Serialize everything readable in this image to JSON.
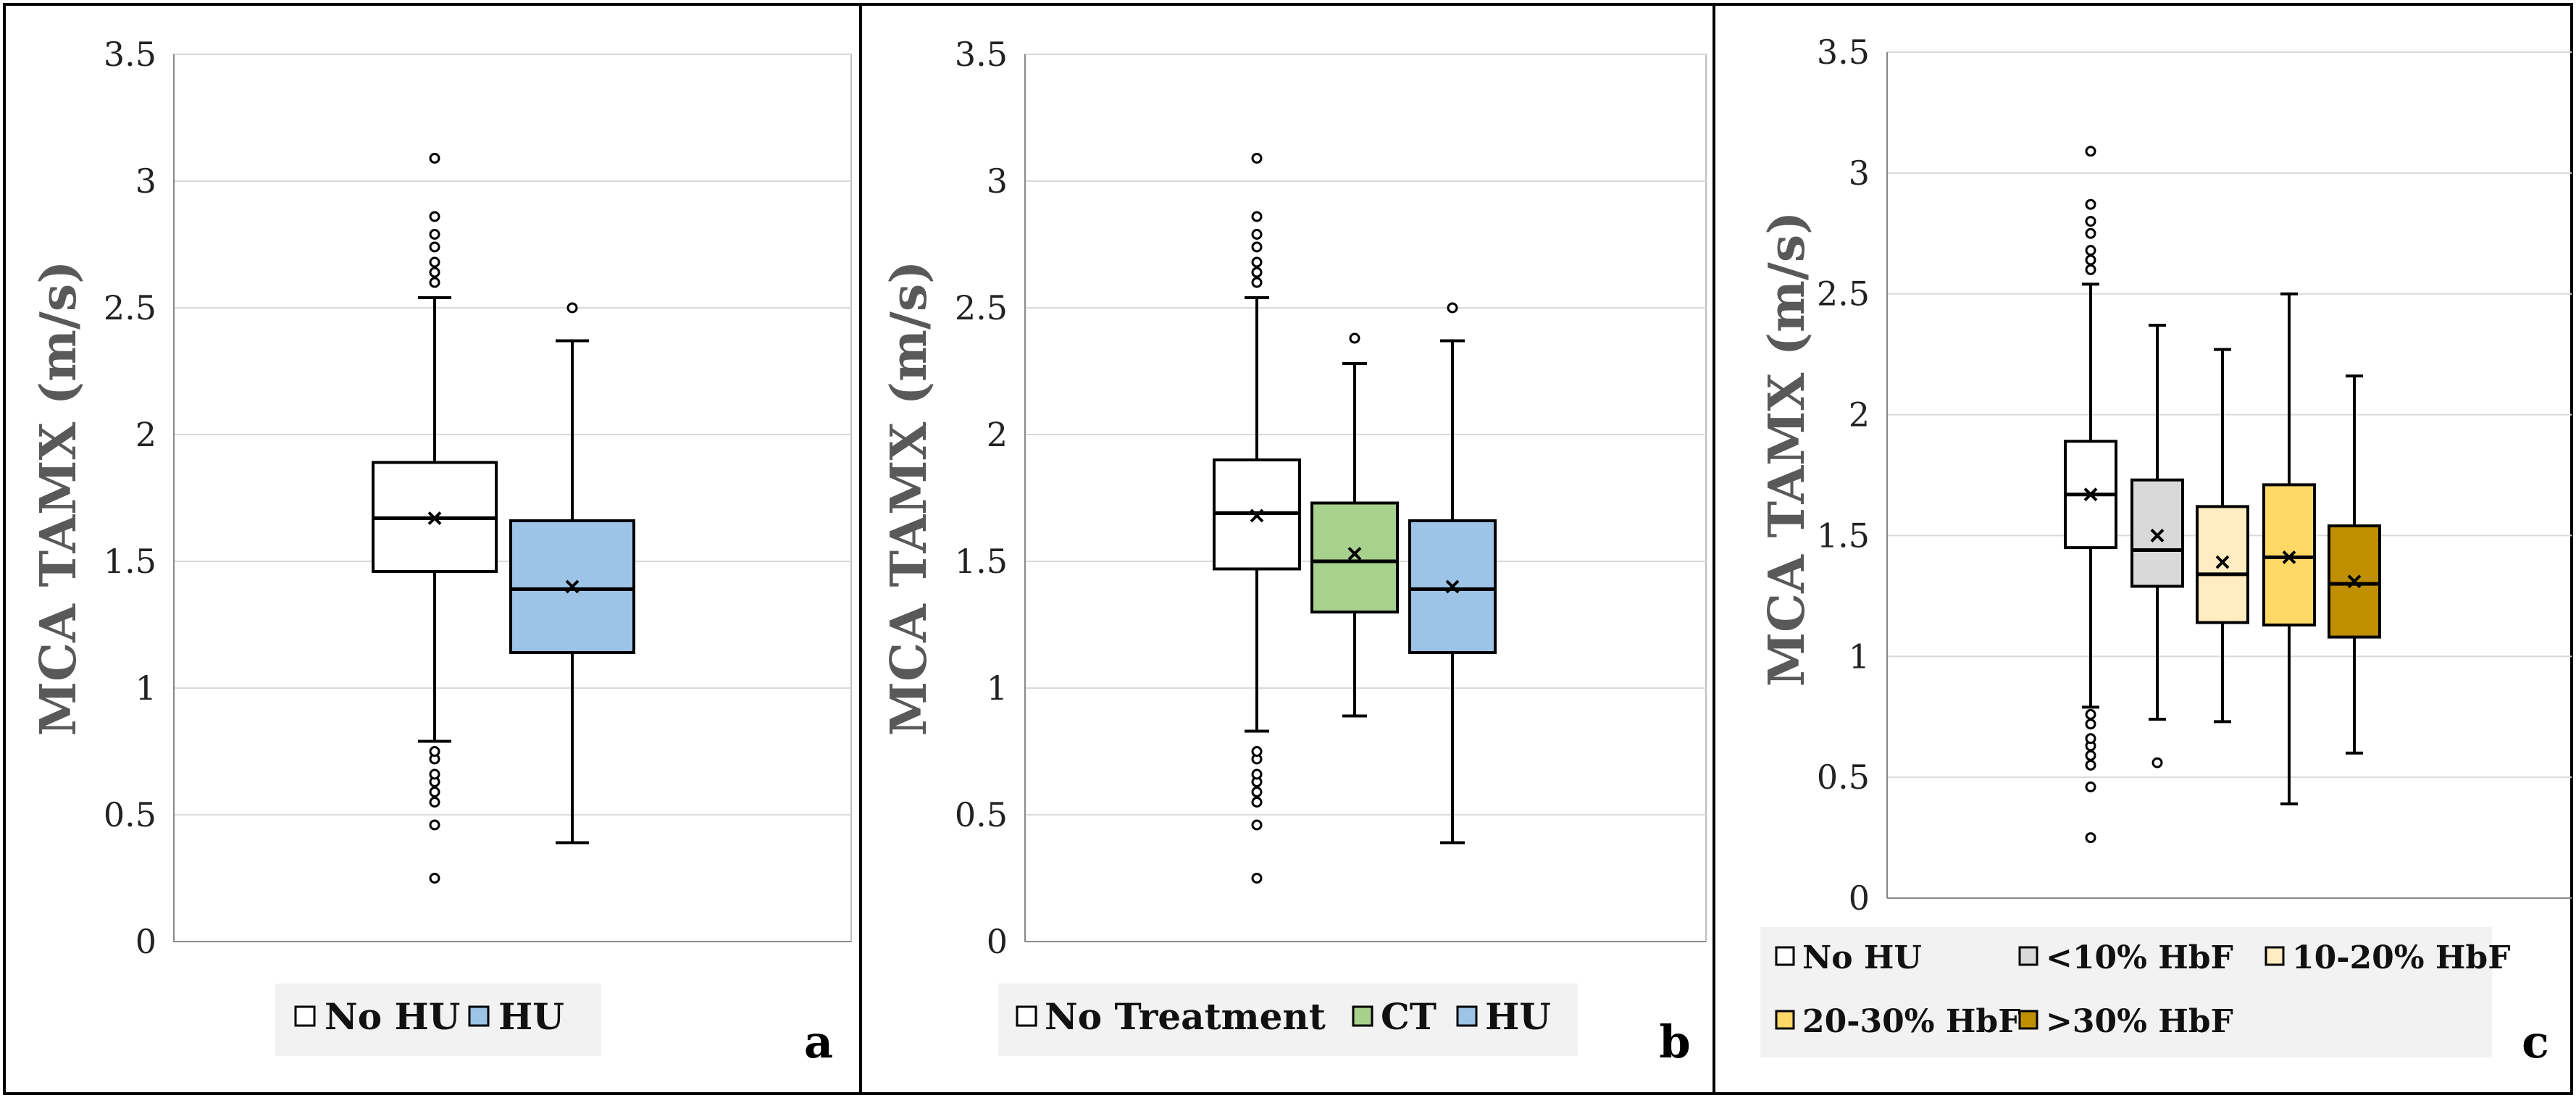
{
  "figure": {
    "panels_count": 3
  },
  "chart_data": [
    {
      "type": "boxplot",
      "panel_label": "a",
      "ylabel": "MCA TAMX (m/s)",
      "ylim": [
        0,
        3.5
      ],
      "yticks": [
        0,
        0.5,
        1,
        1.5,
        2,
        2.5,
        3,
        3.5
      ],
      "ytick_labels": [
        "0",
        "0.5",
        "1",
        "1.5",
        "2",
        "2.5",
        "3",
        "3.5"
      ],
      "grid": true,
      "legend_position": "bottom",
      "series": [
        {
          "name": "No HU",
          "color": "#ffffff",
          "whisker_low": 0.79,
          "q1": 1.46,
          "median": 1.67,
          "q3": 1.89,
          "whisker_high": 2.54,
          "mean": 1.67,
          "outliers": [
            2.6,
            2.64,
            2.68,
            2.74,
            2.79,
            2.86,
            3.09,
            0.25,
            0.46,
            0.55,
            0.59,
            0.63,
            0.66,
            0.72,
            0.75
          ]
        },
        {
          "name": "HU",
          "color": "#9dc3e6",
          "whisker_low": 0.39,
          "q1": 1.14,
          "median": 1.39,
          "q3": 1.66,
          "whisker_high": 2.37,
          "mean": 1.4,
          "outliers": [
            2.5
          ]
        }
      ]
    },
    {
      "type": "boxplot",
      "panel_label": "b",
      "ylabel": "MCA TAMX (m/s)",
      "ylim": [
        0,
        3.5
      ],
      "yticks": [
        0,
        0.5,
        1,
        1.5,
        2,
        2.5,
        3,
        3.5
      ],
      "ytick_labels": [
        "0",
        "0.5",
        "1",
        "1.5",
        "2",
        "2.5",
        "3",
        "3.5"
      ],
      "grid": true,
      "legend_position": "bottom",
      "series": [
        {
          "name": "No Treatment",
          "color": "#ffffff",
          "whisker_low": 0.83,
          "q1": 1.47,
          "median": 1.69,
          "q3": 1.9,
          "whisker_high": 2.54,
          "mean": 1.68,
          "outliers": [
            2.6,
            2.64,
            2.68,
            2.74,
            2.79,
            2.86,
            3.09,
            0.25,
            0.46,
            0.55,
            0.59,
            0.63,
            0.66,
            0.72,
            0.75
          ]
        },
        {
          "name": "CT",
          "color": "#a9d18e",
          "whisker_low": 0.89,
          "q1": 1.3,
          "median": 1.5,
          "q3": 1.73,
          "whisker_high": 2.28,
          "mean": 1.53,
          "outliers": [
            2.38
          ]
        },
        {
          "name": "HU",
          "color": "#9dc3e6",
          "whisker_low": 0.39,
          "q1": 1.14,
          "median": 1.39,
          "q3": 1.66,
          "whisker_high": 2.37,
          "mean": 1.4,
          "outliers": [
            2.5
          ]
        }
      ]
    },
    {
      "type": "boxplot",
      "panel_label": "c",
      "ylabel": "MCA TAMX (m/s)",
      "ylim": [
        0,
        3.5
      ],
      "yticks": [
        0,
        0.5,
        1,
        1.5,
        2,
        2.5,
        3,
        3.5
      ],
      "ytick_labels": [
        "0",
        "0.5",
        "1",
        "1.5",
        "2",
        "2.5",
        "3",
        "3.5"
      ],
      "grid": true,
      "legend_position": "bottom",
      "series": [
        {
          "name": "No HU",
          "color": "#ffffff",
          "whisker_low": 0.79,
          "q1": 1.45,
          "median": 1.67,
          "q3": 1.89,
          "whisker_high": 2.54,
          "mean": 1.67,
          "outliers": [
            2.6,
            2.64,
            2.68,
            2.75,
            2.8,
            2.87,
            3.09,
            0.25,
            0.46,
            0.55,
            0.59,
            0.63,
            0.66,
            0.72,
            0.76
          ]
        },
        {
          "name": "<10% HbF",
          "color": "#d9d9d9",
          "whisker_low": 0.74,
          "q1": 1.29,
          "median": 1.44,
          "q3": 1.73,
          "whisker_high": 2.37,
          "mean": 1.5,
          "outliers": [
            0.56
          ]
        },
        {
          "name": "10-20% HbF",
          "color": "#ffecc1",
          "whisker_low": 0.73,
          "q1": 1.14,
          "median": 1.34,
          "q3": 1.62,
          "whisker_high": 2.27,
          "mean": 1.39,
          "outliers": []
        },
        {
          "name": "20-30% HbF",
          "color": "#ffd966",
          "whisker_low": 0.39,
          "q1": 1.13,
          "median": 1.41,
          "q3": 1.71,
          "whisker_high": 2.5,
          "mean": 1.41,
          "outliers": []
        },
        {
          "name": ">30% HbF",
          "color": "#bf8f00",
          "whisker_low": 0.6,
          "q1": 1.08,
          "median": 1.3,
          "q3": 1.54,
          "whisker_high": 2.16,
          "mean": 1.31,
          "outliers": []
        }
      ]
    }
  ]
}
